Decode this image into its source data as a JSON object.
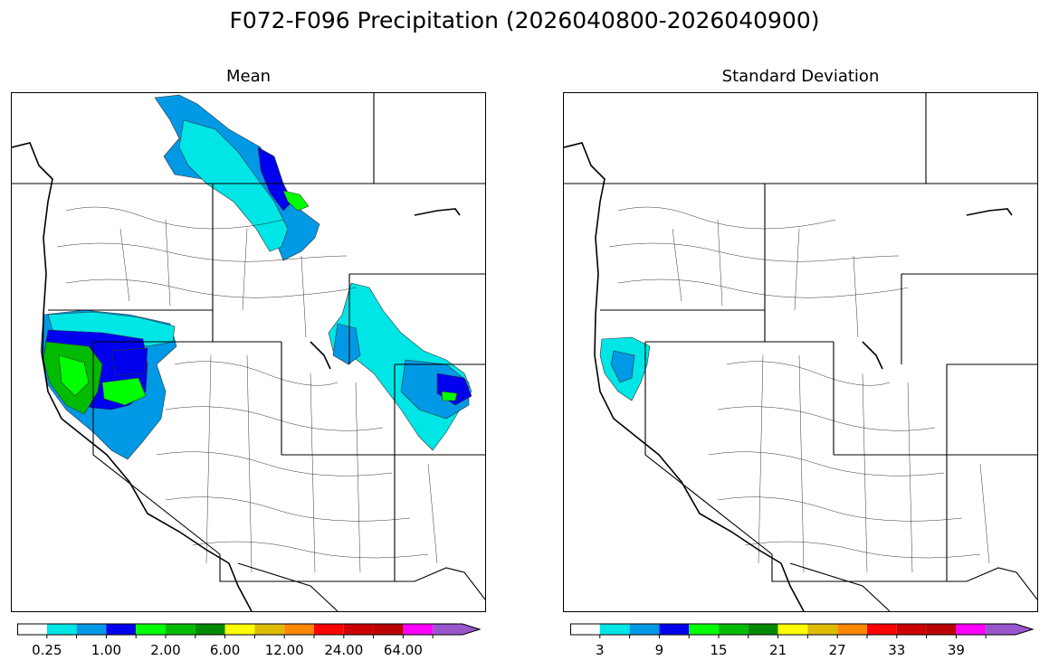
{
  "figure": {
    "title": "F072-F096 Precipitation (2026040800-2026040900)"
  },
  "panels": [
    {
      "title": "Mean",
      "colorbar": {
        "colors": [
          "#ffffff",
          "#00e5e5",
          "#0099e6",
          "#0000ee",
          "#00ff00",
          "#00bb00",
          "#008800",
          "#ffff00",
          "#ddbb00",
          "#ff8800",
          "#ff0000",
          "#cc0000",
          "#bb0000",
          "#ff00ff",
          "#9955cc"
        ],
        "tick_labels": [
          "0.25",
          "1.00",
          "2.00",
          "6.00",
          "12.00",
          "24.00",
          "64.00"
        ]
      }
    },
    {
      "title": "Standard Deviation",
      "colorbar": {
        "colors": [
          "#ffffff",
          "#00e5e5",
          "#0099e6",
          "#0000ee",
          "#00ff00",
          "#00bb00",
          "#008800",
          "#ffff00",
          "#ddbb00",
          "#ff8800",
          "#ff0000",
          "#cc0000",
          "#bb0000",
          "#ff00ff",
          "#9955cc"
        ],
        "tick_labels": [
          "3",
          "9",
          "15",
          "21",
          "27",
          "33",
          "39"
        ]
      }
    }
  ]
}
